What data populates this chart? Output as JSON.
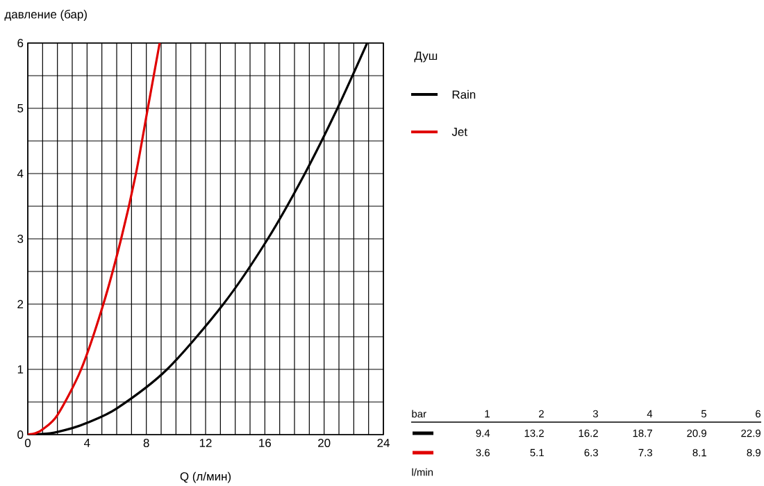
{
  "chart_data": {
    "type": "line",
    "xlabel": "Q (л/мин)",
    "ylabel": "давление (бар)",
    "legend_title": "Душ",
    "legend": "right",
    "grid": true,
    "xlim": [
      0,
      24
    ],
    "ylim": [
      0,
      6
    ],
    "xticks": [
      0,
      4,
      8,
      12,
      16,
      20,
      24
    ],
    "yticks": [
      0,
      1,
      2,
      3,
      4,
      5,
      6
    ],
    "annotations": [
      "bar",
      "1",
      "2",
      "3",
      "4",
      "5",
      "6",
      "9.4",
      "13.2",
      "16.2",
      "18.7",
      "20.9",
      "22.9",
      "3.6",
      "5.1",
      "6.3",
      "7.3",
      "8.1",
      "8.9",
      "l/min"
    ],
    "series": [
      {
        "name": "Rain",
        "color": "#000000",
        "x": [
          0,
          1.5,
          3,
          4,
          6,
          9.4,
          13.2,
          16.2,
          18.7,
          20.9,
          22.9
        ],
        "values": [
          0,
          0.02,
          0.1,
          0.18,
          0.4,
          1,
          2,
          3,
          4,
          5,
          6
        ]
      },
      {
        "name": "Jet",
        "color": "#e00000",
        "x": [
          0,
          0.5,
          1,
          2,
          3.6,
          5.1,
          6.3,
          7.3,
          8.1,
          8.9
        ],
        "values": [
          0,
          0.02,
          0.08,
          0.3,
          1,
          2,
          3,
          4,
          5,
          6
        ]
      }
    ]
  }
}
